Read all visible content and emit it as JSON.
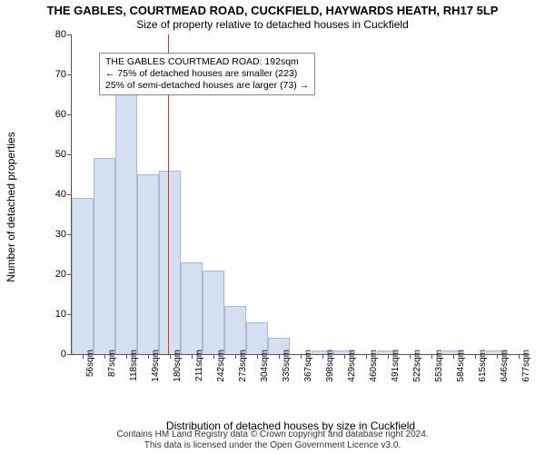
{
  "header": {
    "title": "THE GABLES, COURTMEAD ROAD, CUCKFIELD, HAYWARDS HEATH, RH17 5LP",
    "subtitle": "Size of property relative to detached houses in Cuckfield"
  },
  "chart": {
    "type": "histogram",
    "ylabel": "Number of detached properties",
    "xlabel": "Distribution of detached houses by size in Cuckfield",
    "ymax": 80,
    "ytick_step": 10,
    "bar_fill": "#d4dff0",
    "bar_stroke": "#a8b8d8",
    "background_color": "#ffffff",
    "axis_color": "#555555",
    "reference_line": {
      "color": "#d73030",
      "position_index": 4.4
    },
    "bins": [
      {
        "label": "56sqm",
        "value": 39
      },
      {
        "label": "87sqm",
        "value": 49
      },
      {
        "label": "118sqm",
        "value": 68
      },
      {
        "label": "149sqm",
        "value": 45
      },
      {
        "label": "180sqm",
        "value": 46
      },
      {
        "label": "211sqm",
        "value": 23
      },
      {
        "label": "242sqm",
        "value": 21
      },
      {
        "label": "273sqm",
        "value": 12
      },
      {
        "label": "304sqm",
        "value": 8
      },
      {
        "label": "335sqm",
        "value": 4
      },
      {
        "label": "367sqm",
        "value": 0
      },
      {
        "label": "398sqm",
        "value": 1
      },
      {
        "label": "429sqm",
        "value": 1
      },
      {
        "label": "460sqm",
        "value": 0
      },
      {
        "label": "491sqm",
        "value": 1
      },
      {
        "label": "522sqm",
        "value": 0
      },
      {
        "label": "553sqm",
        "value": 0
      },
      {
        "label": "584sqm",
        "value": 1
      },
      {
        "label": "615sqm",
        "value": 0
      },
      {
        "label": "646sqm",
        "value": 1
      },
      {
        "label": "677sqm",
        "value": 0
      }
    ]
  },
  "annotation": {
    "line1": "THE GABLES COURTMEAD ROAD: 192sqm",
    "line2": "← 75% of detached houses are smaller (223)",
    "line3": "25% of semi-detached houses are larger (73) →"
  },
  "footer": {
    "line1": "Contains HM Land Registry data © Crown copyright and database right 2024.",
    "line2": "This data is licensed under the Open Government Licence v3.0."
  }
}
